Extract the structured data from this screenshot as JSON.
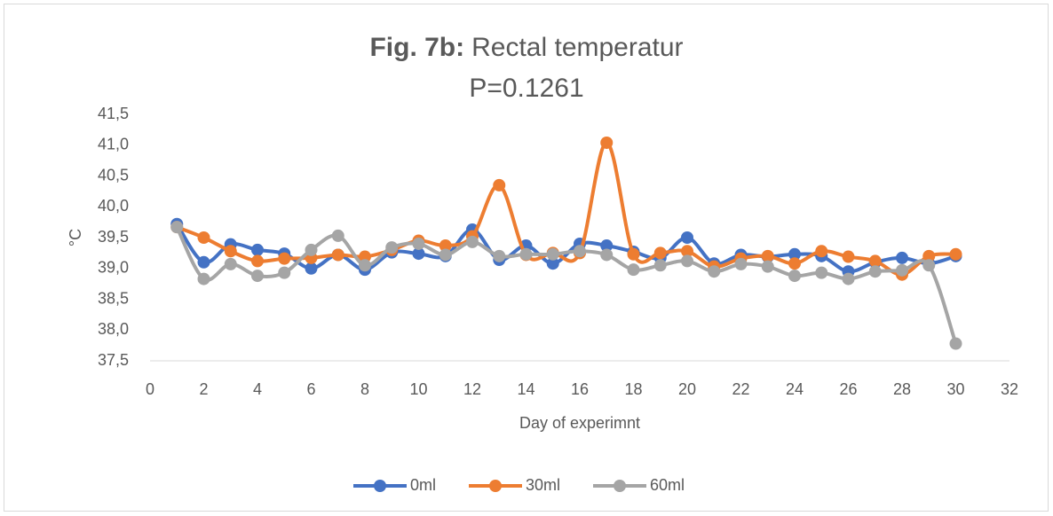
{
  "chart_data": {
    "type": "line",
    "title_label": "Fig. 7b:",
    "title": "Rectal temperatur",
    "subtitle": "P=0.1261",
    "x_label": "Day of experimnt",
    "y_label": "°C",
    "x": [
      1,
      2,
      3,
      4,
      5,
      6,
      7,
      8,
      9,
      10,
      11,
      12,
      13,
      14,
      15,
      16,
      17,
      18,
      19,
      20,
      21,
      22,
      23,
      24,
      25,
      26,
      27,
      28,
      29,
      30
    ],
    "series": [
      {
        "name": "0ml",
        "color": "#4472c4",
        "values": [
          39.72,
          39.1,
          39.39,
          39.3,
          39.24,
          39.0,
          39.22,
          38.98,
          39.26,
          39.24,
          39.2,
          39.63,
          39.14,
          39.37,
          39.08,
          39.4,
          39.37,
          39.27,
          39.17,
          39.5,
          39.08,
          39.22,
          39.19,
          39.23,
          39.2,
          38.95,
          39.1,
          39.17,
          39.08,
          39.2
        ]
      },
      {
        "name": "30ml",
        "color": "#ed7d31",
        "values": [
          39.67,
          39.5,
          39.28,
          39.12,
          39.16,
          39.17,
          39.22,
          39.19,
          39.3,
          39.45,
          39.37,
          39.52,
          40.35,
          39.22,
          39.25,
          39.25,
          41.04,
          39.23,
          39.25,
          39.28,
          39.03,
          39.16,
          39.2,
          39.08,
          39.28,
          39.19,
          39.12,
          38.9,
          39.2,
          39.23
        ]
      },
      {
        "name": "60ml",
        "color": "#a5a5a5",
        "values": [
          39.67,
          38.83,
          39.07,
          38.88,
          38.93,
          39.3,
          39.53,
          39.05,
          39.34,
          39.4,
          39.22,
          39.43,
          39.2,
          39.23,
          39.23,
          39.28,
          39.22,
          38.98,
          39.05,
          39.12,
          38.95,
          39.07,
          39.03,
          38.88,
          38.93,
          38.83,
          38.95,
          38.97,
          39.05,
          37.78
        ]
      }
    ],
    "xlim": [
      0,
      32
    ],
    "xticks": [
      0,
      2,
      4,
      6,
      8,
      10,
      12,
      14,
      16,
      18,
      20,
      22,
      24,
      26,
      28,
      30,
      32
    ],
    "ylim": [
      37.5,
      41.5
    ],
    "yticks": [
      {
        "value": 37.5,
        "label": "37,5"
      },
      {
        "value": 38,
        "label": "38,0"
      },
      {
        "value": 38.5,
        "label": "38,5"
      },
      {
        "value": 39,
        "label": "39,0"
      },
      {
        "value": 39.5,
        "label": "39,5"
      },
      {
        "value": 40,
        "label": "40,0"
      },
      {
        "value": 40.5,
        "label": "40,5"
      },
      {
        "value": 41,
        "label": "41,0"
      },
      {
        "value": 41.5,
        "label": "41,5"
      }
    ],
    "grid": false,
    "smooth": true,
    "legend": "bottom"
  }
}
